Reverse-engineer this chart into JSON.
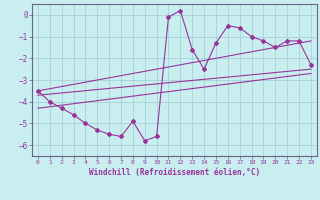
{
  "title": "",
  "xlabel": "Windchill (Refroidissement éolien,°C)",
  "ylabel": "",
  "bg_color": "#c8eef0",
  "grid_color": "#a0ccd4",
  "line_color": "#993399",
  "marker_color": "#993399",
  "xlim": [
    -0.5,
    23.5
  ],
  "ylim": [
    -6.5,
    0.5
  ],
  "xticks": [
    0,
    1,
    2,
    3,
    4,
    5,
    6,
    7,
    8,
    9,
    10,
    11,
    12,
    13,
    14,
    15,
    16,
    17,
    18,
    19,
    20,
    21,
    22,
    23
  ],
  "yticks": [
    0,
    -1,
    -2,
    -3,
    -4,
    -5,
    -6
  ],
  "main_x": [
    0,
    1,
    2,
    3,
    4,
    5,
    6,
    7,
    8,
    9,
    10,
    11,
    12,
    13,
    14,
    15,
    16,
    17,
    18,
    19,
    20,
    21,
    22,
    23
  ],
  "main_y": [
    -3.5,
    -4.0,
    -4.3,
    -4.6,
    -5.0,
    -5.3,
    -5.5,
    -5.6,
    -4.9,
    -5.8,
    -5.6,
    -0.1,
    0.2,
    -1.6,
    -2.5,
    -1.3,
    -0.5,
    -0.6,
    -1.0,
    -1.2,
    -1.5,
    -1.2,
    -1.2,
    -2.3
  ],
  "line1_x": [
    0,
    23
  ],
  "line1_y": [
    -3.5,
    -1.2
  ],
  "line2_x": [
    0,
    23
  ],
  "line2_y": [
    -3.7,
    -2.5
  ],
  "line3_x": [
    0,
    23
  ],
  "line3_y": [
    -4.3,
    -2.7
  ]
}
